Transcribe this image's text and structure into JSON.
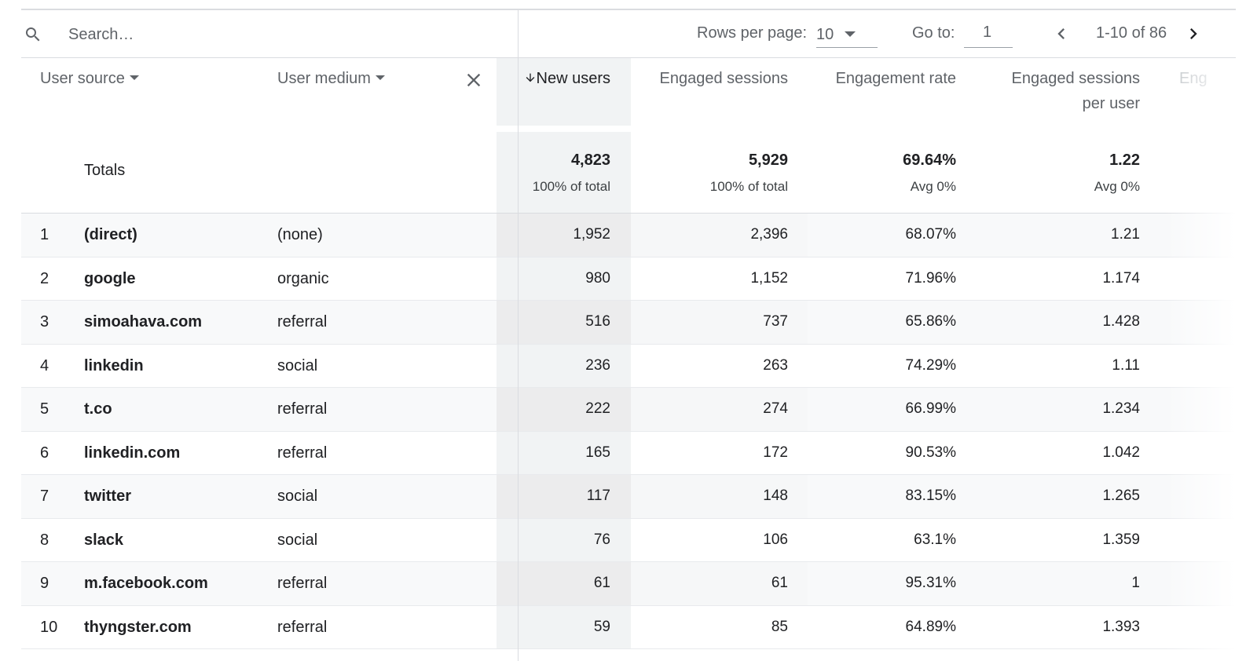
{
  "toolbar": {
    "search_placeholder": "Search…",
    "rows_per_page_label": "Rows per page:",
    "rows_per_page_value": "10",
    "goto_label": "Go to:",
    "goto_value": "1",
    "page_range": "1-10 of 86"
  },
  "header": {
    "user_source": "User source",
    "user_medium": "User medium",
    "new_users": "New users",
    "engaged_sessions": "Engaged sessions",
    "engagement_rate": "Engagement rate",
    "engaged_sessions_per_user_line1": "Engaged sessions",
    "engaged_sessions_per_user_line2": "per user",
    "partial_next_column": "Eng"
  },
  "totals": {
    "label": "Totals",
    "new_users": "4,823",
    "new_users_sub": "100% of total",
    "engaged_sessions": "5,929",
    "engaged_sessions_sub": "100% of total",
    "engagement_rate": "69.64%",
    "engagement_rate_sub": "Avg 0%",
    "engaged_sessions_per_user": "1.22",
    "engaged_sessions_per_user_sub": "Avg 0%"
  },
  "rows": [
    {
      "index": "1",
      "source": "(direct)",
      "medium": "(none)",
      "new_users": "1,952",
      "engaged_sessions": "2,396",
      "engagement_rate": "68.07%",
      "sessions_per_user": "1.21"
    },
    {
      "index": "2",
      "source": "google",
      "medium": "organic",
      "new_users": "980",
      "engaged_sessions": "1,152",
      "engagement_rate": "71.96%",
      "sessions_per_user": "1.174"
    },
    {
      "index": "3",
      "source": "simoahava.com",
      "medium": "referral",
      "new_users": "516",
      "engaged_sessions": "737",
      "engagement_rate": "65.86%",
      "sessions_per_user": "1.428"
    },
    {
      "index": "4",
      "source": "linkedin",
      "medium": "social",
      "new_users": "236",
      "engaged_sessions": "263",
      "engagement_rate": "74.29%",
      "sessions_per_user": "1.11"
    },
    {
      "index": "5",
      "source": "t.co",
      "medium": "referral",
      "new_users": "222",
      "engaged_sessions": "274",
      "engagement_rate": "66.99%",
      "sessions_per_user": "1.234"
    },
    {
      "index": "6",
      "source": "linkedin.com",
      "medium": "referral",
      "new_users": "165",
      "engaged_sessions": "172",
      "engagement_rate": "90.53%",
      "sessions_per_user": "1.042"
    },
    {
      "index": "7",
      "source": "twitter",
      "medium": "social",
      "new_users": "117",
      "engaged_sessions": "148",
      "engagement_rate": "83.15%",
      "sessions_per_user": "1.265"
    },
    {
      "index": "8",
      "source": "slack",
      "medium": "social",
      "new_users": "76",
      "engaged_sessions": "106",
      "engagement_rate": "63.1%",
      "sessions_per_user": "1.359"
    },
    {
      "index": "9",
      "source": "m.facebook.com",
      "medium": "referral",
      "new_users": "61",
      "engaged_sessions": "61",
      "engagement_rate": "95.31%",
      "sessions_per_user": "1"
    },
    {
      "index": "10",
      "source": "thyngster.com",
      "medium": "referral",
      "new_users": "59",
      "engaged_sessions": "85",
      "engagement_rate": "64.89%",
      "sessions_per_user": "1.393"
    }
  ],
  "icons": {
    "search": "search-icon",
    "rows_dropdown": "caret-down-icon",
    "prev": "chevron-left-icon",
    "next": "chevron-right-icon",
    "clear": "close-icon",
    "sort": "arrow-down-icon"
  },
  "colors": {
    "text": "#202124",
    "muted": "#5f6368",
    "sorted_column_bg": "#f1f3f4",
    "divider": "#dadce0"
  }
}
